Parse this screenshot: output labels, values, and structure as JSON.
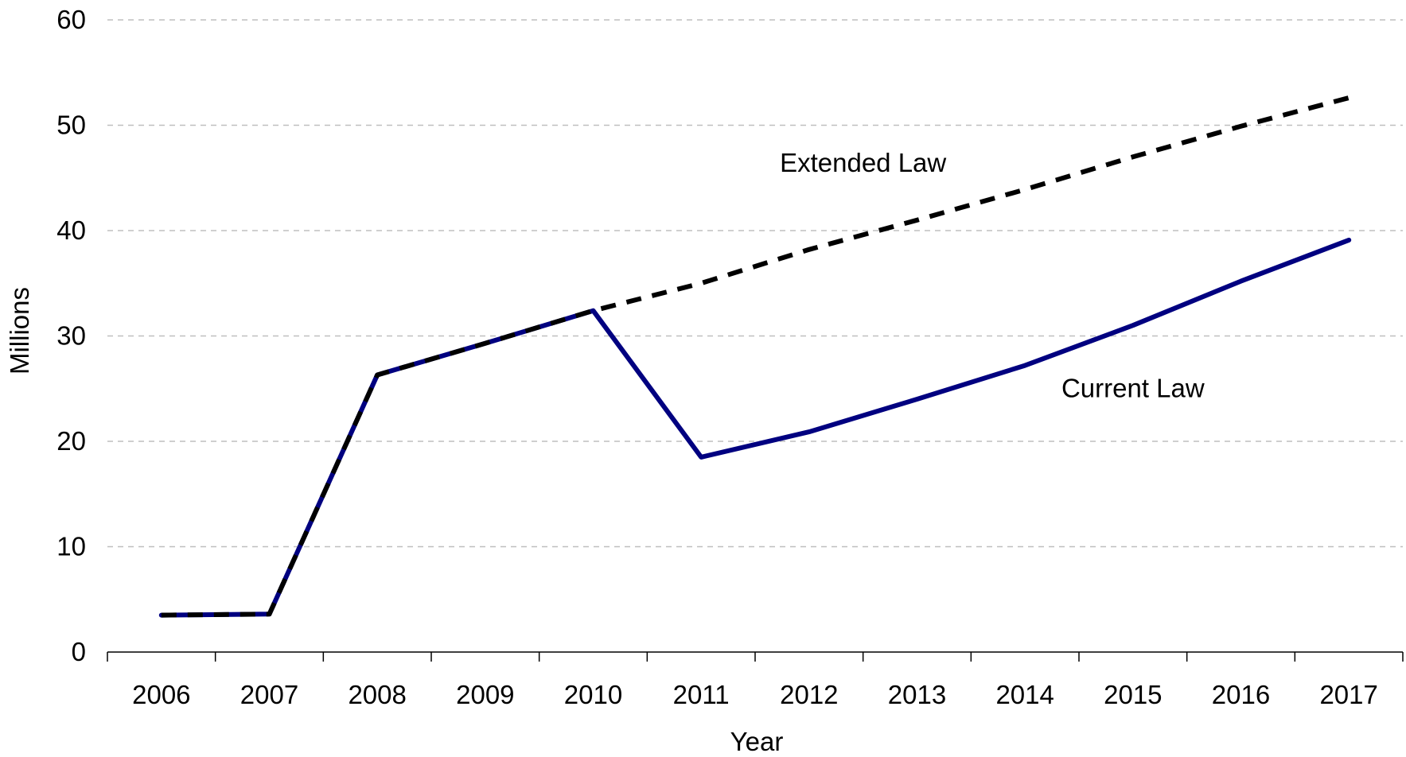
{
  "chart_data": {
    "type": "line",
    "title": "",
    "xlabel": "Year",
    "ylabel": "Millions",
    "categories": [
      "2006",
      "2007",
      "2008",
      "2009",
      "2010",
      "2011",
      "2012",
      "2013",
      "2014",
      "2015",
      "2016",
      "2017"
    ],
    "ylim": [
      0,
      60
    ],
    "yticks": [
      0,
      10,
      20,
      30,
      40,
      50,
      60
    ],
    "grid": "horizontal dashed",
    "legend": "none",
    "series": [
      {
        "name": "Current Law",
        "color": "#000080",
        "style": "solid",
        "values": [
          3.5,
          3.6,
          26.3,
          29.3,
          32.4,
          18.5,
          20.9,
          24.0,
          27.2,
          31.0,
          35.2,
          39.1
        ]
      },
      {
        "name": "Extended Law",
        "color": "#000000",
        "style": "dashed",
        "values": [
          3.5,
          3.6,
          26.3,
          29.3,
          32.4,
          35.0,
          38.2,
          41.0,
          43.9,
          47.0,
          49.9,
          52.6
        ]
      }
    ],
    "annotations": [
      {
        "text": "Extended Law",
        "x": "2012.5",
        "y": 45.6,
        "series": "Extended Law"
      },
      {
        "text": "Current Law",
        "x": "2015.0",
        "y": 24.2,
        "series": "Current Law"
      }
    ]
  }
}
